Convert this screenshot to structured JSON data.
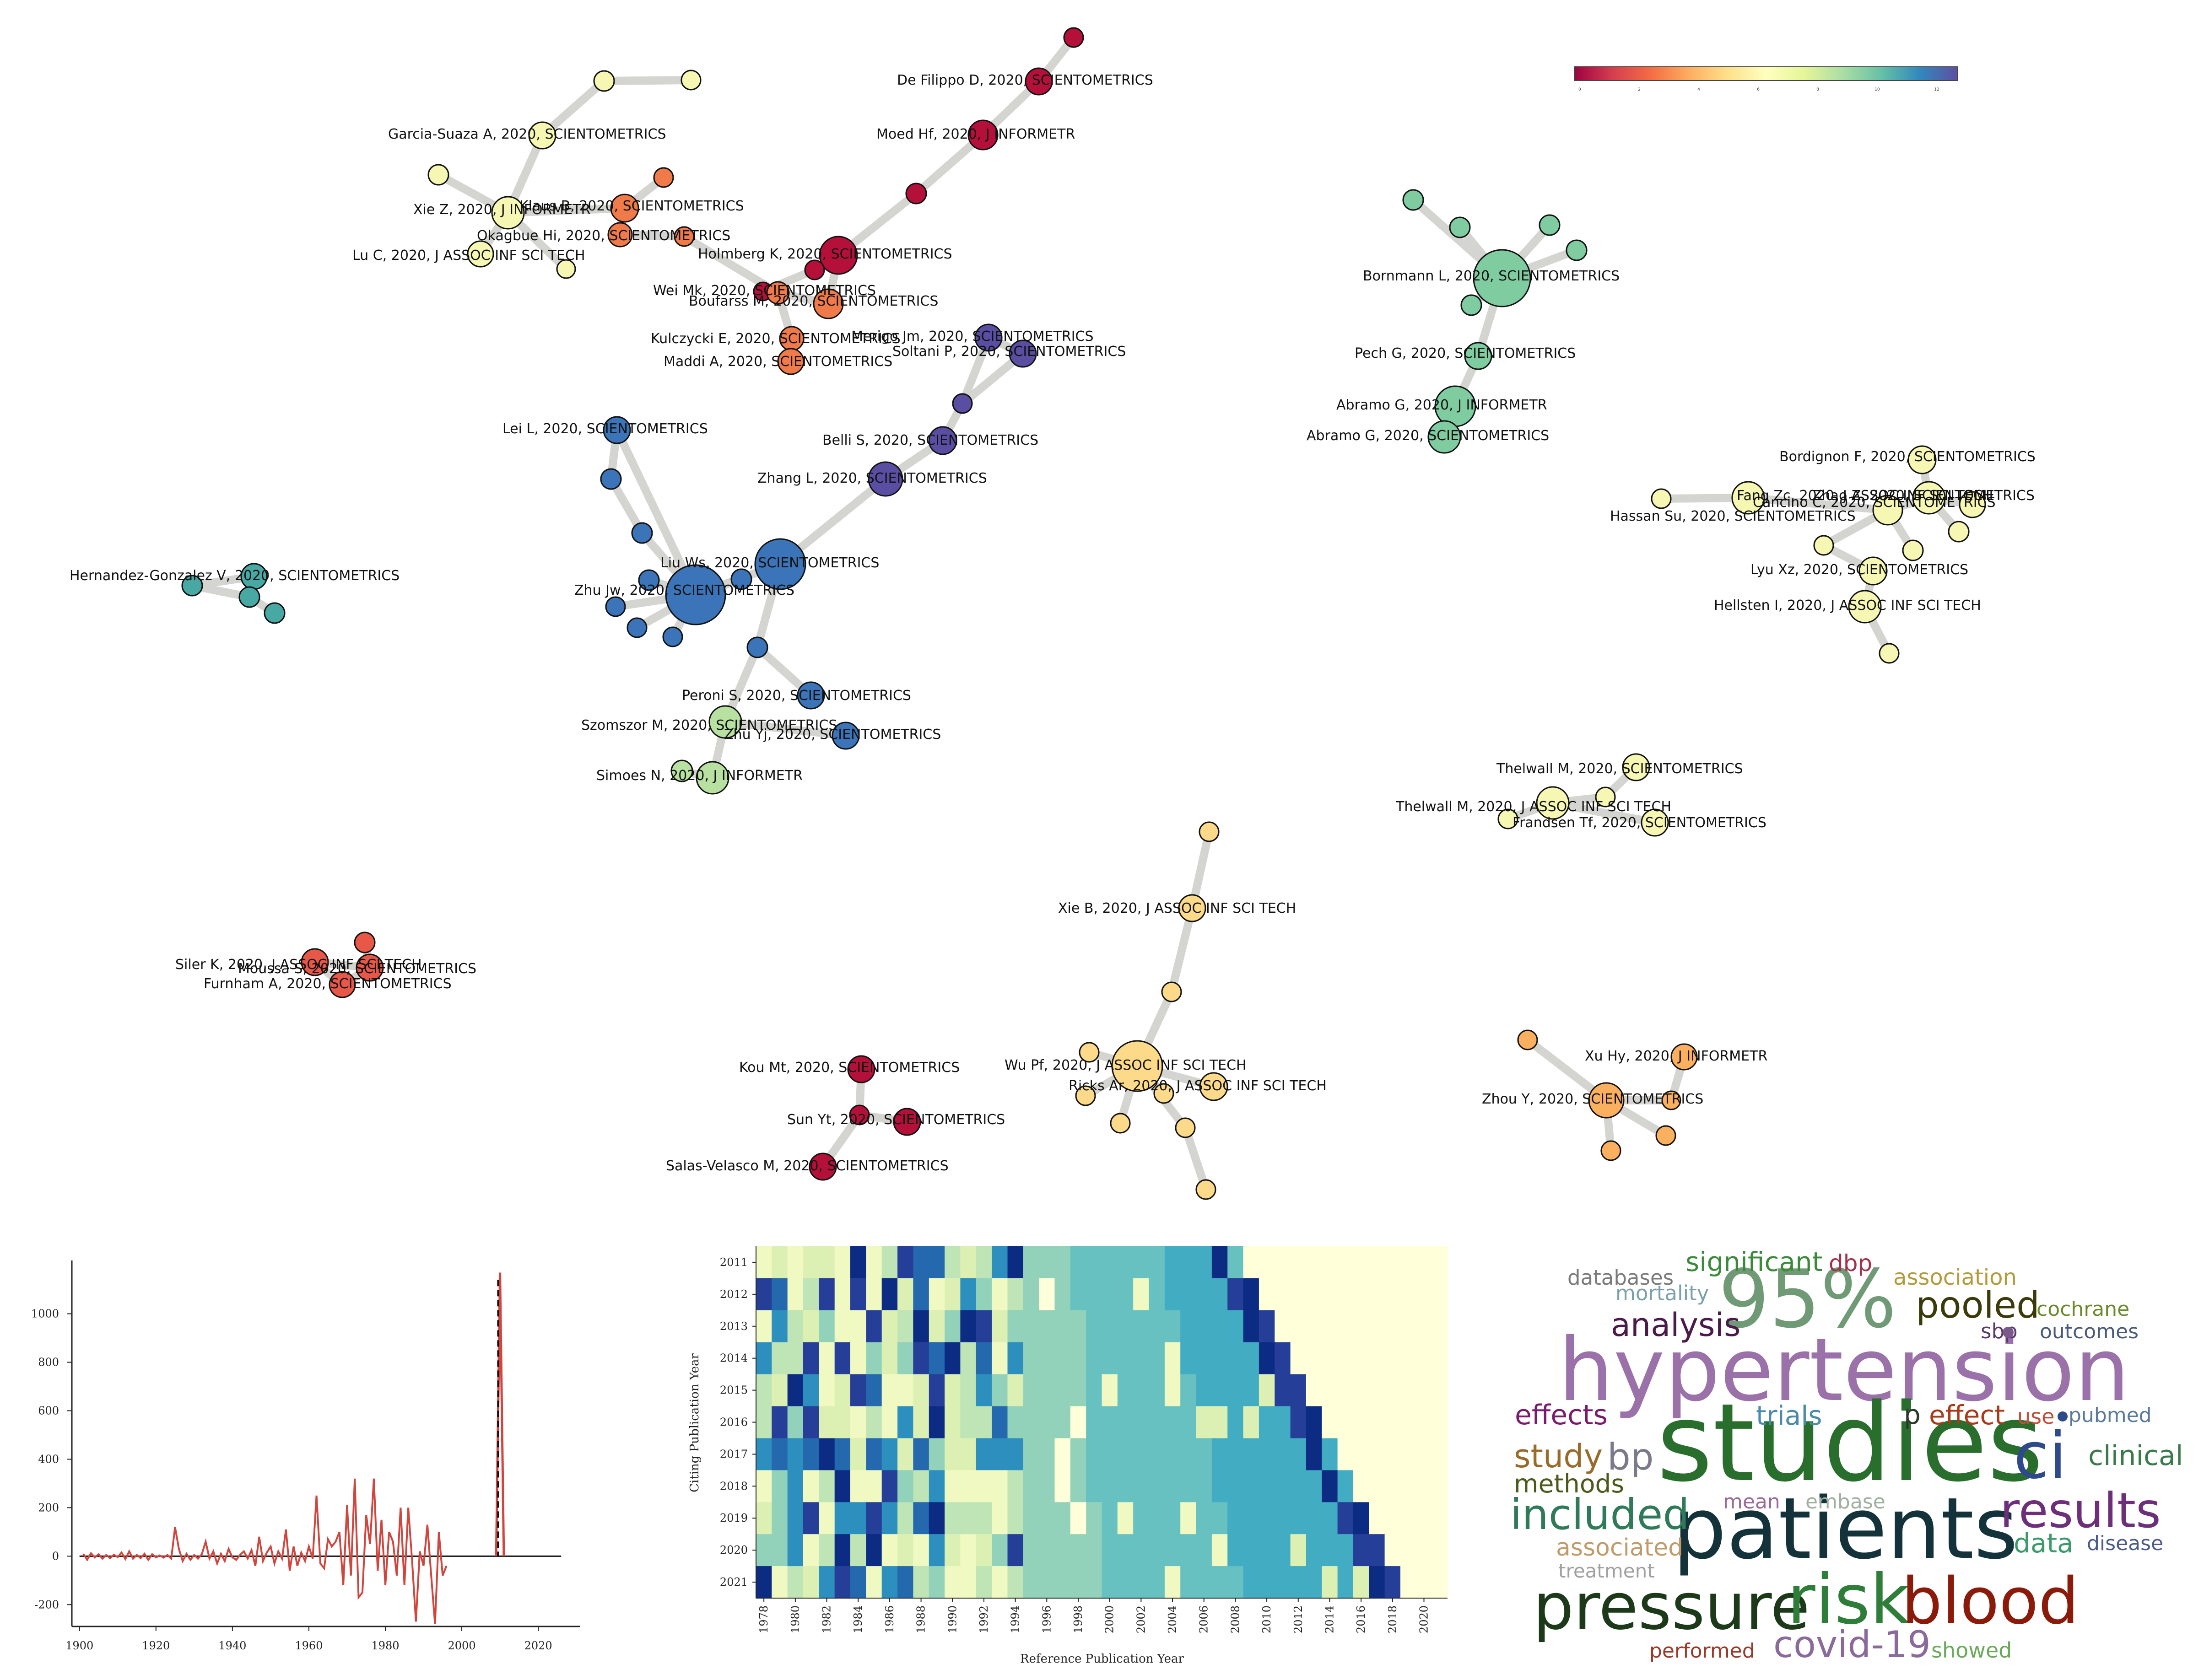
{
  "colors": {
    "edge": "#d4d4d0",
    "red": "#b5103a",
    "orange": "#f07a4a",
    "lightorange": "#fbb060",
    "yellow": "#fdd98a",
    "paleyellow": "#f6f7b2",
    "lightgreen": "#b8e0a0",
    "green": "#7fcca0",
    "teal": "#47a8a4",
    "blue": "#3b74b8",
    "purple": "#5a4ea2",
    "redorange": "#e85848"
  },
  "chart_data": [
    {
      "type": "network",
      "colorbar": {
        "colormap": "Spectral",
        "colors": [
          "#9e0142",
          "#d53e4f",
          "#f46d43",
          "#fdae61",
          "#fee08b",
          "#ffffbf",
          "#e6f598",
          "#abdda4",
          "#66c2a5",
          "#3288bd",
          "#5e4fa2"
        ],
        "ticks": [
          "0",
          "2",
          "4",
          "6",
          "8",
          "10",
          "12"
        ]
      },
      "node_labels": [
        "De Filippo D, 2020, SCIENTOMETRICS",
        "Moed Hf, 2020, J INFORMETR",
        "Garcia-Suaza A, 2020, SCIENTOMETRICS",
        "Xie Z, 2020, J INFORMETR",
        "Klaus B, 2020, SCIENTOMETRICS",
        "Okagbue Hi, 2020, SCIENTOMETRICS",
        "Lu C, 2020, J ASSOC INF SCI TECH",
        "Holmberg K, 2020, SCIENTOMETRICS",
        "Wei Mk, 2020, SCIENTOMETRICS",
        "Boufarss M, 2020, SCIENTOMETRICS",
        "Kulczycki E, 2020, SCIENTOMETRICS",
        "Merigo Jm, 2020, SCIENTOMETRICS",
        "Soltani P, 2020, SCIENTOMETRICS",
        "Maddi A, 2020, SCIENTOMETRICS",
        "Lei L, 2020, SCIENTOMETRICS",
        "Belli S, 2020, SCIENTOMETRICS",
        "Zhang L, 2020, SCIENTOMETRICS",
        "Liu Ws, 2020, SCIENTOMETRICS",
        "Zhu Jw, 2020, SCIENTOMETRICS",
        "Hernandez-Gonzalez V, 2020, SCIENTOMETRICS",
        "Peroni S, 2020, SCIENTOMETRICS",
        "Szomszor M, 2020, SCIENTOMETRICS",
        "Zhu Yj, 2020, SCIENTOMETRICS",
        "Simoes N, 2020, J INFORMETR",
        "Bornmann L, 2020, SCIENTOMETRICS",
        "Pech G, 2020, SCIENTOMETRICS",
        "Abramo G, 2020, J INFORMETR",
        "Abramo G, 2020, SCIENTOMETRICS",
        "Bordignon F, 2020, SCIENTOMETRICS",
        "Fang Zc, 2020, J ASSOC INF SCI TECH",
        "Zhao Z, 2020, SCIENTOMETRICS",
        "Cancino C, 2020, SCIENTOMETRICS",
        "Hassan Su, 2020, SCIENTOMETRICS",
        "Lyu Xz, 2020, SCIENTOMETRICS",
        "Hellsten I, 2020, J ASSOC INF SCI TECH",
        "Thelwall M, 2020, SCIENTOMETRICS",
        "Thelwall M, 2020, J ASSOC INF SCI TECH",
        "Frandsen Tf, 2020, SCIENTOMETRICS",
        "Xie B, 2020, J ASSOC INF SCI TECH",
        "Siler K, 2020, J ASSOC INF SCI TECH",
        "Moussa S, 2020, SCIENTOMETRICS",
        "Furnham A, 2020, SCIENTOMETRICS",
        "Kou Mt, 2020, SCIENTOMETRICS",
        "Sun Yt, 2020, SCIENTOMETRICS",
        "Salas-Velasco M, 2020, SCIENTOMETRICS",
        "Wu Pf, 2020, J ASSOC INF SCI TECH",
        "Ricks Ar, 2020, J ASSOC INF SCI TECH",
        "Xu Hy, 2020, J INFORMETR",
        "Zhou Y, 2020, SCIENTOMETRICS"
      ]
    },
    {
      "type": "line",
      "x_ticks": [
        "1900",
        "1920",
        "1940",
        "1960",
        "1980",
        "2000",
        "2020"
      ],
      "y_ticks": [
        "-200",
        "0",
        "200",
        "400",
        "600",
        "800",
        "1000"
      ],
      "xlim": [
        1898,
        2031
      ],
      "ylim": [
        -290,
        1220
      ],
      "series": [
        {
          "color": "#d0453e",
          "x": [
            1901,
            1902,
            1903,
            1904,
            1905,
            1906,
            1907,
            1908,
            1909,
            1910,
            1911,
            1912,
            1913,
            1914,
            1915,
            1916,
            1917,
            1918,
            1919,
            1920,
            1921,
            1922,
            1923,
            1924,
            1925,
            1926,
            1927,
            1928,
            1929,
            1930,
            1931,
            1932,
            1933,
            1934,
            1935,
            1936,
            1937,
            1938,
            1939,
            1940,
            1941,
            1942,
            1943,
            1944,
            1945,
            1946,
            1947,
            1948,
            1949,
            1950,
            1951,
            1952,
            1953,
            1954,
            1955,
            1956,
            1957,
            1958,
            1959,
            1960,
            1961,
            1962,
            1963,
            1964,
            1965,
            1966,
            1967,
            1968,
            1969,
            1970,
            1971,
            1972,
            1973,
            1974,
            1975,
            1976,
            1977,
            1978,
            1979,
            1980,
            1981,
            1982,
            1983,
            1984,
            1985,
            1986,
            1987,
            1988,
            1989,
            1990,
            1991,
            1992,
            1993,
            1994,
            1995,
            1996
          ],
          "y": [
            10,
            -15,
            12,
            -5,
            8,
            -10,
            5,
            -8,
            6,
            -4,
            15,
            -12,
            20,
            -10,
            5,
            -8,
            10,
            -15,
            8,
            -5,
            3,
            -6,
            5,
            -10,
            120,
            30,
            -20,
            10,
            -15,
            5,
            -10,
            8,
            60,
            -10,
            20,
            -30,
            10,
            -20,
            30,
            -5,
            -15,
            5,
            20,
            -10,
            25,
            -40,
            80,
            -20,
            15,
            40,
            -30,
            20,
            -10,
            110,
            -60,
            40,
            -40,
            15,
            -20,
            40,
            -10,
            250,
            -30,
            -50,
            70,
            40,
            60,
            100,
            -120,
            210,
            -80,
            320,
            -170,
            -150,
            170,
            50,
            320,
            -60,
            150,
            -120,
            100,
            60,
            -80,
            200,
            -120,
            200,
            -20,
            -270,
            20,
            -40,
            130,
            -80,
            -280,
            100,
            -80,
            -40
          ],
          "zero_line": [
            1900,
            2026
          ],
          "dashed_vline": 2009.5,
          "spike": {
            "x": [
              2009,
              2010,
              2011
            ],
            "y": [
              0,
              1170,
              0
            ]
          }
        }
      ]
    },
    {
      "type": "heatmap",
      "xlabel": "Reference Publication Year",
      "ylabel": "Citing Publication Year",
      "x_ticks": [
        "1978",
        "1980",
        "1982",
        "1984",
        "1986",
        "1988",
        "1990",
        "1992",
        "1994",
        "1996",
        "1998",
        "2000",
        "2002",
        "2004",
        "2006",
        "2008",
        "2010",
        "2012",
        "2014",
        "2016",
        "2018",
        "2020"
      ],
      "y_ticks": [
        "2011",
        "2012",
        "2013",
        "2014",
        "2015",
        "2016",
        "2017",
        "2018",
        "2019",
        "2020",
        "2021"
      ],
      "x_range": [
        1978,
        2021
      ],
      "y_range": [
        2011,
        2021
      ]
    },
    {
      "type": "wordcloud",
      "words": [
        {
          "text": "hypertension",
          "color": "#9b71a9"
        },
        {
          "text": "studies",
          "color": "#2a6e2e"
        },
        {
          "text": "patients",
          "color": "#13323a"
        },
        {
          "text": "95%",
          "color": "#6f9a75"
        },
        {
          "text": "pressure",
          "color": "#1c3a1a"
        },
        {
          "text": "risk",
          "color": "#2e7e3a"
        },
        {
          "text": "blood",
          "color": "#8a1a0a"
        },
        {
          "text": "ci",
          "color": "#2f4a8a"
        },
        {
          "text": "results",
          "color": "#6d2f7a"
        },
        {
          "text": "included",
          "color": "#2f7a58"
        },
        {
          "text": "pooled",
          "color": "#3a3a0a"
        },
        {
          "text": "analysis",
          "color": "#4a1a4a"
        },
        {
          "text": "bp",
          "color": "#7a7a8a"
        },
        {
          "text": "study",
          "color": "#9a6a2a"
        },
        {
          "text": "covid-19",
          "color": "#8a6a9a"
        },
        {
          "text": "significant",
          "color": "#3a8a3a"
        },
        {
          "text": "effects",
          "color": "#7a1a6a"
        },
        {
          "text": "trials",
          "color": "#4a8aaa"
        },
        {
          "text": "clinical",
          "color": "#3a7a4a"
        },
        {
          "text": "effect",
          "color": "#a83a1a"
        },
        {
          "text": "methods",
          "color": "#4a5a1a"
        },
        {
          "text": "data",
          "color": "#3a9a6a"
        },
        {
          "text": "associated",
          "color": "#c09a6a"
        },
        {
          "text": "dbp",
          "color": "#a2304a"
        },
        {
          "text": "association",
          "color": "#b49a3a"
        },
        {
          "text": "mortality",
          "color": "#7aa0b0"
        },
        {
          "text": "databases",
          "color": "#7a7a7a"
        },
        {
          "text": "cochrane",
          "color": "#6a8a2a"
        },
        {
          "text": "sbp",
          "color": "#5a3a6a"
        },
        {
          "text": "outcomes",
          "color": "#4a5a7a"
        },
        {
          "text": "p",
          "color": "#2a3a2a"
        },
        {
          "text": "use",
          "color": "#c2503a"
        },
        {
          "text": "pubmed",
          "color": "#5a7a9a"
        },
        {
          "text": "mean",
          "color": "#9a6a9a"
        },
        {
          "text": "embase",
          "color": "#a0b0a0"
        },
        {
          "text": "disease",
          "color": "#4a5a8a"
        },
        {
          "text": "treatment",
          "color": "#a0a0a0"
        },
        {
          "text": "performed",
          "color": "#9a3a2a"
        },
        {
          "text": "showed",
          "color": "#6aaa5a"
        }
      ]
    }
  ]
}
